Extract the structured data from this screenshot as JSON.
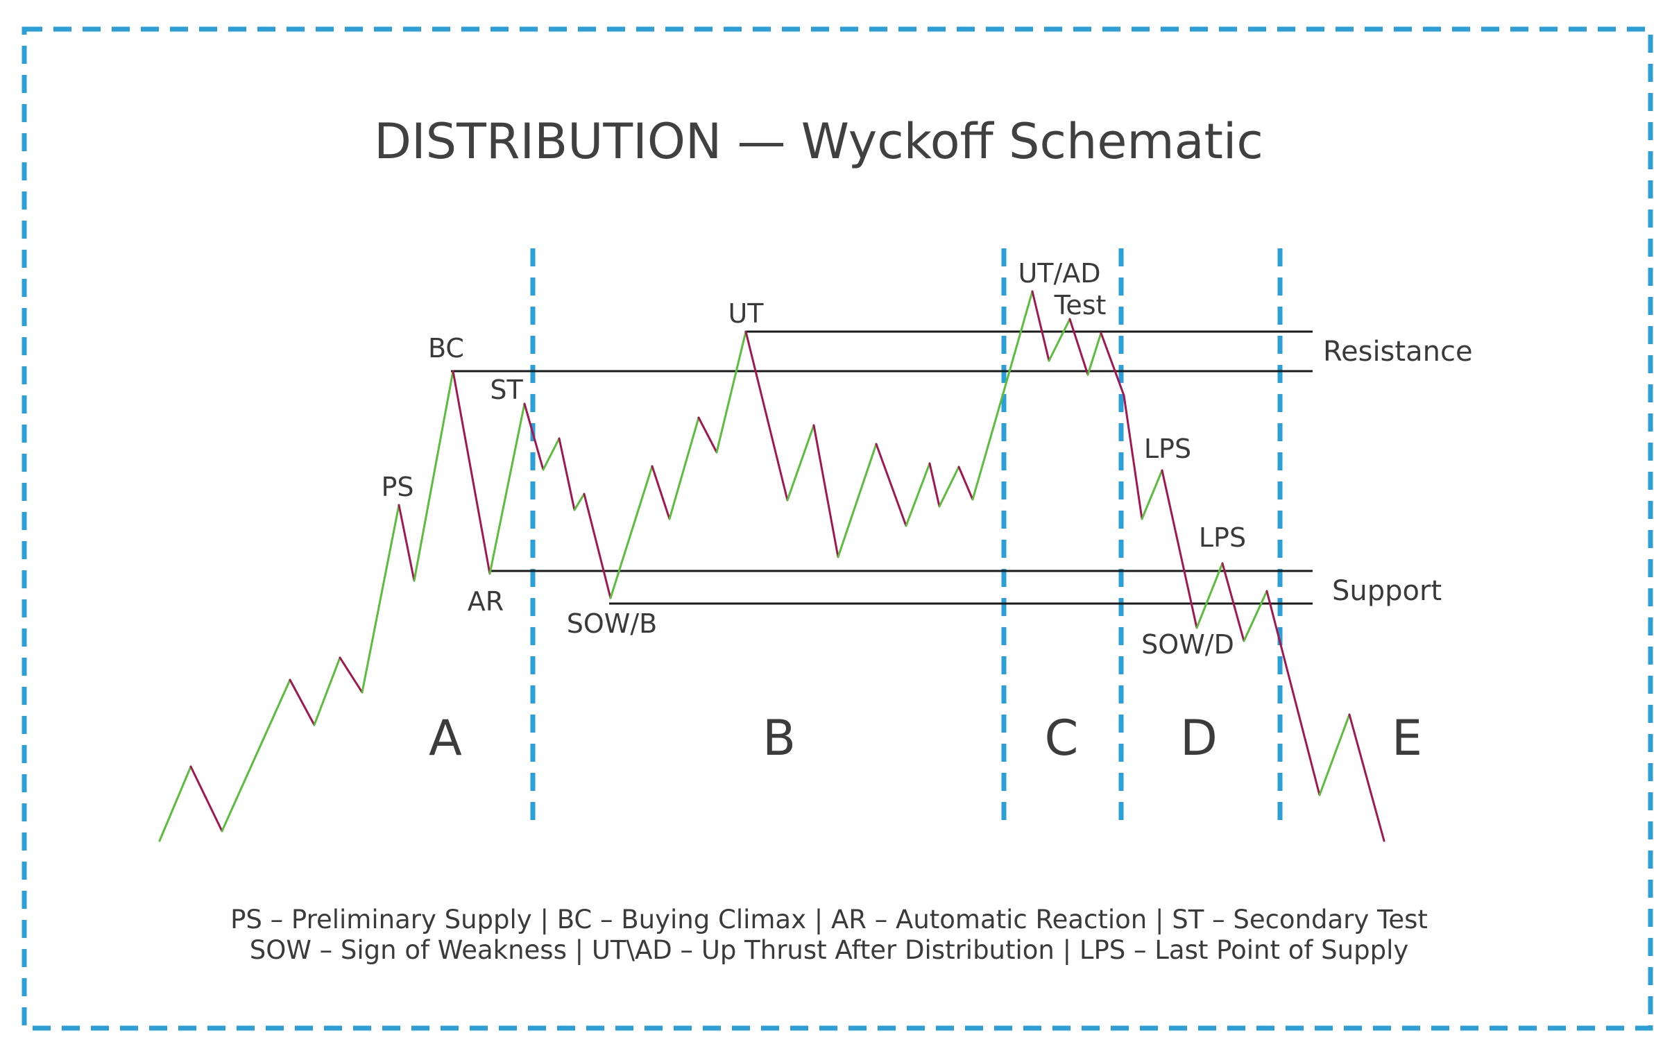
{
  "title": "DISTRIBUTION — Wyckoff Schematic",
  "levels": {
    "resistance_label": "Resistance",
    "support_label": "Support"
  },
  "phases": [
    "A",
    "B",
    "C",
    "D",
    "E"
  ],
  "events": {
    "ps": "PS",
    "bc": "BC",
    "ar": "AR",
    "st": "ST",
    "sow_b": "SOW/B",
    "ut": "UT",
    "ut_ad": "UT/AD",
    "test": "Test",
    "lps_1": "LPS",
    "lps_2": "LPS",
    "sow_d": "SOW/D"
  },
  "legend": {
    "line1": "PS – Preliminary Supply | BC – Buying Climax | AR – Automatic Reaction | ST – Secondary Test",
    "line2": "SOW – Sign of Weakness | UT\\AD – Up Thrust After Distribution | LPS – Last Point of Supply"
  },
  "colors": {
    "up_move": "#5bbd3c",
    "down_move": "#a1174f",
    "phase_divider": "#2a9fd8",
    "border": "#2a9fd8",
    "level_line": "#1a1a1a"
  }
}
